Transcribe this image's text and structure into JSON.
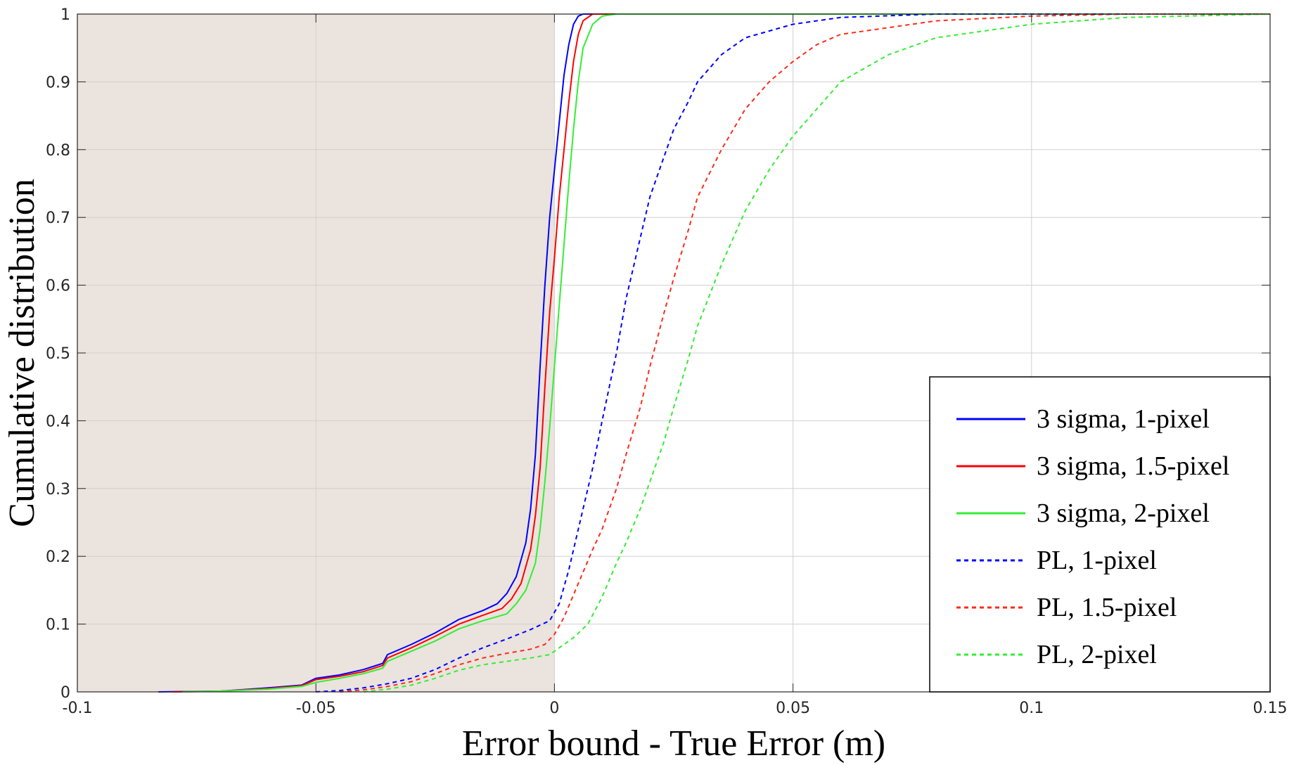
{
  "chart_data": {
    "type": "line",
    "title": "",
    "xlabel": "Error bound - True Error (m)",
    "ylabel": "Cumulative distribution",
    "xlim": [
      -0.1,
      0.15
    ],
    "ylim": [
      0,
      1
    ],
    "xticks": [
      -0.1,
      -0.05,
      0,
      0.05,
      0.1,
      0.15
    ],
    "xtick_labels": [
      "-0.1",
      "-0.05",
      "0",
      "0.05",
      "0.1",
      "0.15"
    ],
    "yticks": [
      0,
      0.1,
      0.2,
      0.3,
      0.4,
      0.5,
      0.6,
      0.7,
      0.8,
      0.9,
      1
    ],
    "ytick_labels": [
      "0",
      "0.1",
      "0.2",
      "0.3",
      "0.4",
      "0.5",
      "0.6",
      "0.7",
      "0.8",
      "0.9",
      "1"
    ],
    "grid": true,
    "legend_position": "bottom-right",
    "shaded_region": {
      "x": [
        -0.1,
        0
      ],
      "color": "#ebe3dd"
    },
    "series": [
      {
        "name": "3 sigma, 1-pixel",
        "color": "#0000ff",
        "style": "solid",
        "points": [
          [
            -0.083,
            0
          ],
          [
            -0.07,
            0.001
          ],
          [
            -0.06,
            0.006
          ],
          [
            -0.053,
            0.01
          ],
          [
            -0.05,
            0.02
          ],
          [
            -0.045,
            0.025
          ],
          [
            -0.04,
            0.033
          ],
          [
            -0.036,
            0.042
          ],
          [
            -0.035,
            0.055
          ],
          [
            -0.03,
            0.07
          ],
          [
            -0.025,
            0.087
          ],
          [
            -0.02,
            0.107
          ],
          [
            -0.015,
            0.12
          ],
          [
            -0.012,
            0.13
          ],
          [
            -0.01,
            0.145
          ],
          [
            -0.008,
            0.17
          ],
          [
            -0.006,
            0.22
          ],
          [
            -0.005,
            0.27
          ],
          [
            -0.004,
            0.35
          ],
          [
            -0.003,
            0.48
          ],
          [
            -0.002,
            0.6
          ],
          [
            -0.001,
            0.7
          ],
          [
            0,
            0.77
          ],
          [
            0.001,
            0.84
          ],
          [
            0.002,
            0.91
          ],
          [
            0.003,
            0.955
          ],
          [
            0.004,
            0.985
          ],
          [
            0.005,
            0.997
          ],
          [
            0.006,
            1
          ],
          [
            0.15,
            1
          ]
        ]
      },
      {
        "name": "3 sigma, 1.5-pixel",
        "color": "#ff0000",
        "style": "solid",
        "points": [
          [
            -0.08,
            0
          ],
          [
            -0.07,
            0.001
          ],
          [
            -0.06,
            0.005
          ],
          [
            -0.053,
            0.009
          ],
          [
            -0.05,
            0.018
          ],
          [
            -0.045,
            0.023
          ],
          [
            -0.04,
            0.03
          ],
          [
            -0.036,
            0.039
          ],
          [
            -0.035,
            0.05
          ],
          [
            -0.03,
            0.065
          ],
          [
            -0.025,
            0.082
          ],
          [
            -0.02,
            0.1
          ],
          [
            -0.015,
            0.113
          ],
          [
            -0.011,
            0.123
          ],
          [
            -0.009,
            0.137
          ],
          [
            -0.007,
            0.16
          ],
          [
            -0.005,
            0.21
          ],
          [
            -0.004,
            0.26
          ],
          [
            -0.003,
            0.33
          ],
          [
            -0.002,
            0.45
          ],
          [
            -0.001,
            0.56
          ],
          [
            0,
            0.64
          ],
          [
            0.001,
            0.73
          ],
          [
            0.002,
            0.8
          ],
          [
            0.003,
            0.87
          ],
          [
            0.004,
            0.93
          ],
          [
            0.005,
            0.97
          ],
          [
            0.006,
            0.99
          ],
          [
            0.008,
            1
          ],
          [
            0.15,
            1
          ]
        ]
      },
      {
        "name": "3 sigma, 2-pixel",
        "color": "#33ee33",
        "style": "solid",
        "points": [
          [
            -0.078,
            0
          ],
          [
            -0.07,
            0.001
          ],
          [
            -0.06,
            0.004
          ],
          [
            -0.053,
            0.008
          ],
          [
            -0.05,
            0.014
          ],
          [
            -0.045,
            0.02
          ],
          [
            -0.04,
            0.027
          ],
          [
            -0.036,
            0.035
          ],
          [
            -0.035,
            0.045
          ],
          [
            -0.03,
            0.06
          ],
          [
            -0.025,
            0.075
          ],
          [
            -0.02,
            0.093
          ],
          [
            -0.015,
            0.105
          ],
          [
            -0.01,
            0.115
          ],
          [
            -0.008,
            0.13
          ],
          [
            -0.006,
            0.15
          ],
          [
            -0.004,
            0.19
          ],
          [
            -0.003,
            0.24
          ],
          [
            -0.002,
            0.31
          ],
          [
            -0.001,
            0.39
          ],
          [
            0,
            0.48
          ],
          [
            0.001,
            0.57
          ],
          [
            0.002,
            0.66
          ],
          [
            0.003,
            0.75
          ],
          [
            0.004,
            0.83
          ],
          [
            0.005,
            0.9
          ],
          [
            0.006,
            0.95
          ],
          [
            0.008,
            0.985
          ],
          [
            0.01,
            0.997
          ],
          [
            0.013,
            1
          ],
          [
            0.15,
            1
          ]
        ]
      },
      {
        "name": "PL, 1-pixel",
        "color": "#0000ff",
        "style": "dashed",
        "points": [
          [
            -0.05,
            0
          ],
          [
            -0.045,
            0.002
          ],
          [
            -0.04,
            0.006
          ],
          [
            -0.035,
            0.012
          ],
          [
            -0.03,
            0.02
          ],
          [
            -0.025,
            0.033
          ],
          [
            -0.02,
            0.05
          ],
          [
            -0.015,
            0.065
          ],
          [
            -0.01,
            0.078
          ],
          [
            -0.005,
            0.092
          ],
          [
            -0.001,
            0.105
          ],
          [
            0.001,
            0.13
          ],
          [
            0.003,
            0.18
          ],
          [
            0.005,
            0.24
          ],
          [
            0.008,
            0.33
          ],
          [
            0.01,
            0.4
          ],
          [
            0.013,
            0.5
          ],
          [
            0.015,
            0.58
          ],
          [
            0.018,
            0.67
          ],
          [
            0.02,
            0.73
          ],
          [
            0.023,
            0.79
          ],
          [
            0.025,
            0.83
          ],
          [
            0.028,
            0.87
          ],
          [
            0.03,
            0.9
          ],
          [
            0.035,
            0.94
          ],
          [
            0.04,
            0.965
          ],
          [
            0.05,
            0.985
          ],
          [
            0.06,
            0.995
          ],
          [
            0.08,
            1
          ],
          [
            0.15,
            1
          ]
        ]
      },
      {
        "name": "PL, 1.5-pixel",
        "color": "#ff2a1a",
        "style": "dashed",
        "points": [
          [
            -0.045,
            0
          ],
          [
            -0.04,
            0.003
          ],
          [
            -0.035,
            0.008
          ],
          [
            -0.03,
            0.015
          ],
          [
            -0.025,
            0.027
          ],
          [
            -0.02,
            0.04
          ],
          [
            -0.015,
            0.05
          ],
          [
            -0.01,
            0.057
          ],
          [
            -0.005,
            0.063
          ],
          [
            -0.002,
            0.07
          ],
          [
            0,
            0.085
          ],
          [
            0.002,
            0.11
          ],
          [
            0.005,
            0.16
          ],
          [
            0.008,
            0.21
          ],
          [
            0.01,
            0.24
          ],
          [
            0.013,
            0.3
          ],
          [
            0.015,
            0.35
          ],
          [
            0.018,
            0.42
          ],
          [
            0.02,
            0.48
          ],
          [
            0.023,
            0.56
          ],
          [
            0.025,
            0.61
          ],
          [
            0.028,
            0.68
          ],
          [
            0.03,
            0.73
          ],
          [
            0.035,
            0.8
          ],
          [
            0.04,
            0.86
          ],
          [
            0.045,
            0.9
          ],
          [
            0.05,
            0.93
          ],
          [
            0.055,
            0.955
          ],
          [
            0.06,
            0.97
          ],
          [
            0.07,
            0.98
          ],
          [
            0.08,
            0.99
          ],
          [
            0.1,
            0.997
          ],
          [
            0.12,
            1
          ],
          [
            0.15,
            1
          ]
        ]
      },
      {
        "name": "PL, 2-pixel",
        "color": "#33ee33",
        "style": "dashed",
        "points": [
          [
            -0.04,
            0
          ],
          [
            -0.035,
            0.004
          ],
          [
            -0.03,
            0.01
          ],
          [
            -0.025,
            0.02
          ],
          [
            -0.02,
            0.032
          ],
          [
            -0.015,
            0.04
          ],
          [
            -0.01,
            0.045
          ],
          [
            -0.005,
            0.05
          ],
          [
            -0.001,
            0.055
          ],
          [
            0.001,
            0.065
          ],
          [
            0.004,
            0.08
          ],
          [
            0.007,
            0.1
          ],
          [
            0.01,
            0.14
          ],
          [
            0.013,
            0.19
          ],
          [
            0.015,
            0.22
          ],
          [
            0.018,
            0.27
          ],
          [
            0.02,
            0.31
          ],
          [
            0.023,
            0.37
          ],
          [
            0.025,
            0.42
          ],
          [
            0.028,
            0.49
          ],
          [
            0.03,
            0.54
          ],
          [
            0.035,
            0.63
          ],
          [
            0.04,
            0.71
          ],
          [
            0.045,
            0.77
          ],
          [
            0.05,
            0.82
          ],
          [
            0.055,
            0.86
          ],
          [
            0.06,
            0.9
          ],
          [
            0.07,
            0.94
          ],
          [
            0.08,
            0.965
          ],
          [
            0.09,
            0.975
          ],
          [
            0.1,
            0.985
          ],
          [
            0.12,
            0.995
          ],
          [
            0.15,
            1
          ]
        ]
      }
    ]
  }
}
